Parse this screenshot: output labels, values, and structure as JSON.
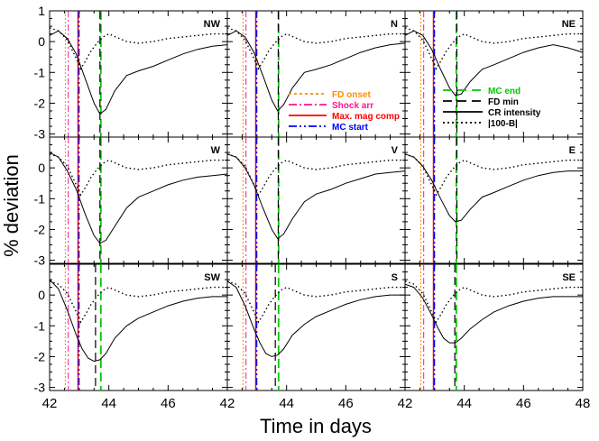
{
  "chart_data": {
    "type": "line",
    "xlabel": "Time in days",
    "ylabel": "% deviation",
    "xlim": [
      42,
      48
    ],
    "ylim": [
      -3.1,
      1.0
    ],
    "x_ticks": [
      42,
      44,
      46,
      48
    ],
    "y_ticks": [
      1,
      0,
      -1,
      -2,
      -3
    ],
    "grid": false,
    "legend_placement": "inside panels N and NE",
    "colors": {
      "fd_onset": "#ff8c00",
      "shock_arr": "#ff1493",
      "max_mag_comp": "#ff0000",
      "mc_start": "#0000ff",
      "mc_end": "#00c800",
      "fd_min": "#000000",
      "cr_intensity": "#000000",
      "b_field": "#000000"
    },
    "events": {
      "fd_onset": 42.53,
      "shock_arr": 42.63,
      "max_mag_comp": 42.96,
      "mc_start": 42.99,
      "mc_end": 43.73
    },
    "legend_left": [
      {
        "label": "FD onset",
        "key": "fd_onset",
        "dash": "3,3"
      },
      {
        "label": "Shock arr",
        "key": "shock_arr",
        "dash": "9,3,2,3"
      },
      {
        "label": "Max. mag comp",
        "key": "max_mag_comp",
        "dash": ""
      },
      {
        "label": "MC start",
        "key": "mc_start",
        "dash": "9,3,2,3,2,3"
      }
    ],
    "legend_right": [
      {
        "label": "MC end",
        "key": "mc_end",
        "dash": "10,6"
      },
      {
        "label": "FD min",
        "key": "fd_min",
        "dash": "10,6"
      },
      {
        "label": "CR intensity",
        "key": "cr_intensity",
        "dash": ""
      },
      {
        "label": "|100-B|",
        "key": "b_field",
        "dash": "2,3"
      }
    ],
    "b_series": {
      "x": [
        42.0,
        42.3,
        42.6,
        42.9,
        43.05,
        43.2,
        43.4,
        43.6,
        43.8,
        44.0,
        44.3,
        44.6,
        45.0,
        45.5,
        46.0,
        46.5,
        47.0,
        47.5,
        48.0
      ],
      "y": [
        0.45,
        0.35,
        0.05,
        -0.55,
        -0.88,
        -0.65,
        -0.3,
        -0.05,
        0.15,
        0.25,
        0.12,
        0.0,
        -0.05,
        0.0,
        0.1,
        0.15,
        0.2,
        0.25,
        0.25
      ]
    },
    "panels": [
      {
        "name": "NW",
        "show_legend": "",
        "cr_x": [
          42.0,
          42.3,
          42.6,
          42.9,
          43.2,
          43.5,
          43.7,
          43.9,
          44.2,
          44.6,
          45.0,
          45.5,
          46.0,
          46.5,
          47.0,
          47.5,
          48.0
        ],
        "cr_y": [
          0.2,
          0.35,
          0.1,
          -0.4,
          -1.2,
          -2.0,
          -2.35,
          -2.2,
          -1.6,
          -1.1,
          -0.95,
          -0.8,
          -0.6,
          -0.4,
          -0.25,
          -0.15,
          -0.1
        ],
        "fd_min": 43.7
      },
      {
        "name": "N",
        "show_legend": "left",
        "cr_x": [
          42.0,
          42.3,
          42.6,
          42.9,
          43.2,
          43.5,
          43.7,
          43.9,
          44.2,
          44.6,
          45.0,
          45.5,
          46.0,
          46.5,
          47.0,
          47.5,
          48.0
        ],
        "cr_y": [
          0.2,
          0.35,
          0.15,
          -0.35,
          -1.1,
          -1.9,
          -2.25,
          -2.05,
          -1.5,
          -1.0,
          -0.9,
          -0.75,
          -0.55,
          -0.35,
          -0.2,
          -0.1,
          -0.05
        ],
        "fd_min": 43.72
      },
      {
        "name": "NE",
        "show_legend": "right",
        "cr_x": [
          42.0,
          42.3,
          42.6,
          42.9,
          43.2,
          43.5,
          43.7,
          43.9,
          44.2,
          44.6,
          45.0,
          45.5,
          46.0,
          46.5,
          47.0,
          47.5,
          48.0
        ],
        "cr_y": [
          0.2,
          0.35,
          0.2,
          -0.25,
          -0.9,
          -1.5,
          -1.75,
          -1.7,
          -1.3,
          -0.9,
          -0.75,
          -0.55,
          -0.35,
          -0.2,
          -0.1,
          -0.2,
          -0.35
        ],
        "fd_min": 43.75
      },
      {
        "name": "W",
        "show_legend": "",
        "cr_x": [
          42.0,
          42.3,
          42.6,
          42.9,
          43.2,
          43.5,
          43.7,
          43.9,
          44.2,
          44.6,
          45.0,
          45.5,
          46.0,
          46.5,
          47.0,
          47.5,
          48.0
        ],
        "cr_y": [
          0.5,
          0.35,
          -0.1,
          -0.7,
          -1.5,
          -2.2,
          -2.45,
          -2.35,
          -1.9,
          -1.3,
          -0.95,
          -0.75,
          -0.55,
          -0.4,
          -0.3,
          -0.25,
          -0.2
        ],
        "fd_min": 43.7
      },
      {
        "name": "V",
        "show_legend": "",
        "cr_x": [
          42.0,
          42.3,
          42.6,
          42.9,
          43.2,
          43.5,
          43.7,
          43.9,
          44.2,
          44.6,
          45.0,
          45.5,
          46.0,
          46.5,
          47.0,
          47.5,
          48.0
        ],
        "cr_y": [
          0.45,
          0.35,
          0.0,
          -0.55,
          -1.3,
          -2.0,
          -2.3,
          -2.15,
          -1.65,
          -1.1,
          -0.85,
          -0.7,
          -0.5,
          -0.35,
          -0.2,
          -0.15,
          -0.1
        ],
        "fd_min": 43.72
      },
      {
        "name": "E",
        "show_legend": "",
        "cr_x": [
          42.0,
          42.3,
          42.6,
          42.9,
          43.2,
          43.5,
          43.7,
          43.9,
          44.2,
          44.6,
          45.0,
          45.5,
          46.0,
          46.5,
          47.0,
          47.5,
          48.0
        ],
        "cr_y": [
          0.45,
          0.35,
          0.05,
          -0.4,
          -1.0,
          -1.55,
          -1.75,
          -1.7,
          -1.35,
          -0.95,
          -0.8,
          -0.6,
          -0.4,
          -0.25,
          -0.15,
          -0.1,
          -0.1
        ],
        "fd_min": 43.75
      },
      {
        "name": "SW",
        "show_legend": "",
        "cr_x": [
          42.0,
          42.3,
          42.6,
          42.9,
          43.1,
          43.3,
          43.5,
          43.7,
          43.9,
          44.2,
          44.6,
          45.0,
          45.5,
          46.0,
          46.5,
          47.0,
          47.5,
          48.0
        ],
        "cr_y": [
          0.5,
          0.2,
          -0.5,
          -1.3,
          -1.75,
          -2.05,
          -2.15,
          -2.1,
          -1.9,
          -1.4,
          -1.0,
          -0.75,
          -0.55,
          -0.35,
          -0.2,
          -0.1,
          -0.05,
          -0.05
        ],
        "fd_min": 43.55
      },
      {
        "name": "S",
        "show_legend": "",
        "cr_x": [
          42.0,
          42.3,
          42.6,
          42.9,
          43.1,
          43.3,
          43.5,
          43.7,
          43.9,
          44.2,
          44.6,
          45.0,
          45.5,
          46.0,
          46.5,
          47.0,
          47.5,
          48.0
        ],
        "cr_y": [
          0.45,
          0.25,
          -0.35,
          -1.1,
          -1.55,
          -1.9,
          -2.0,
          -1.95,
          -1.75,
          -1.3,
          -0.95,
          -0.7,
          -0.5,
          -0.3,
          -0.15,
          -0.05,
          0.0,
          0.0
        ],
        "fd_min": 43.62
      },
      {
        "name": "SE",
        "show_legend": "",
        "cr_x": [
          42.0,
          42.3,
          42.6,
          42.9,
          43.1,
          43.3,
          43.5,
          43.7,
          43.9,
          44.2,
          44.6,
          45.0,
          45.5,
          46.0,
          46.5,
          47.0,
          47.5,
          48.0
        ],
        "cr_y": [
          0.35,
          0.25,
          -0.1,
          -0.65,
          -1.05,
          -1.4,
          -1.55,
          -1.55,
          -1.4,
          -1.1,
          -0.8,
          -0.55,
          -0.35,
          -0.2,
          -0.1,
          -0.05,
          -0.05,
          -0.05
        ],
        "fd_min": 43.68
      }
    ]
  }
}
